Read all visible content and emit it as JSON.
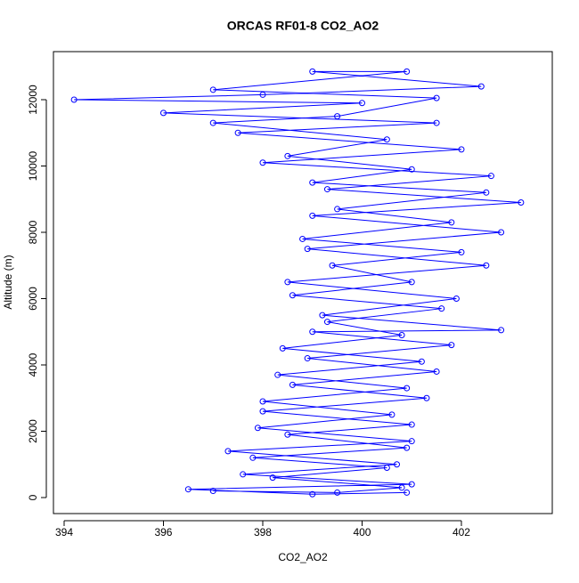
{
  "chart_data": {
    "type": "line",
    "title": "ORCAS RF01-8 CO2_AO2",
    "xlabel": "CO2_AO2",
    "ylabel": "Altitude (m)",
    "color": "#0000ff",
    "point_style": "open-circle",
    "x": [
      397.0,
      399.5,
      400.8,
      398.2,
      400.5,
      397.8,
      400.9,
      398.5,
      401.0,
      398.0,
      401.3,
      398.6,
      401.5,
      398.9,
      401.8,
      399.0,
      402.8,
      399.2,
      401.9,
      398.5,
      402.5,
      398.9,
      402.8,
      399.0,
      403.2,
      399.3,
      402.6,
      398.0,
      402.0,
      397.5,
      401.5,
      396.0,
      400.0,
      394.2,
      398.0,
      402.4,
      399.0,
      400.9,
      397.0,
      401.5,
      399.5,
      397.0,
      400.5,
      398.5,
      401.0,
      399.0,
      402.5,
      399.5,
      401.8,
      398.8,
      402.0,
      399.4,
      401.0,
      398.6,
      401.6,
      399.3,
      400.8,
      398.4,
      401.2,
      398.3,
      400.9,
      398.0,
      400.6,
      397.9,
      401.0,
      397.3,
      400.7,
      397.6,
      401.0,
      396.5,
      399.0,
      400.9
    ],
    "values": [
      200,
      150,
      300,
      600,
      900,
      1200,
      1500,
      1900,
      2200,
      2600,
      3000,
      3400,
      3800,
      4200,
      4600,
      5000,
      5050,
      5500,
      6000,
      6500,
      7000,
      7500,
      8000,
      8500,
      8900,
      9300,
      9700,
      10100,
      10500,
      11000,
      11300,
      11600,
      11900,
      12000,
      12150,
      12400,
      12850,
      12850,
      12300,
      12050,
      11500,
      11300,
      10800,
      10300,
      9900,
      9500,
      9200,
      8700,
      8300,
      7800,
      7400,
      7000,
      6500,
      6100,
      5700,
      5300,
      4900,
      4500,
      4100,
      3700,
      3300,
      2900,
      2500,
      2100,
      1700,
      1400,
      1000,
      700,
      400,
      250,
      100,
      150
    ],
    "xlim": [
      393.785,
      403.83
    ],
    "xticks": [
      394,
      396,
      398,
      400,
      402
    ],
    "ylim": [
      -483,
      13450
    ],
    "yticks": [
      0,
      2000,
      4000,
      6000,
      8000,
      10000,
      12000
    ]
  }
}
